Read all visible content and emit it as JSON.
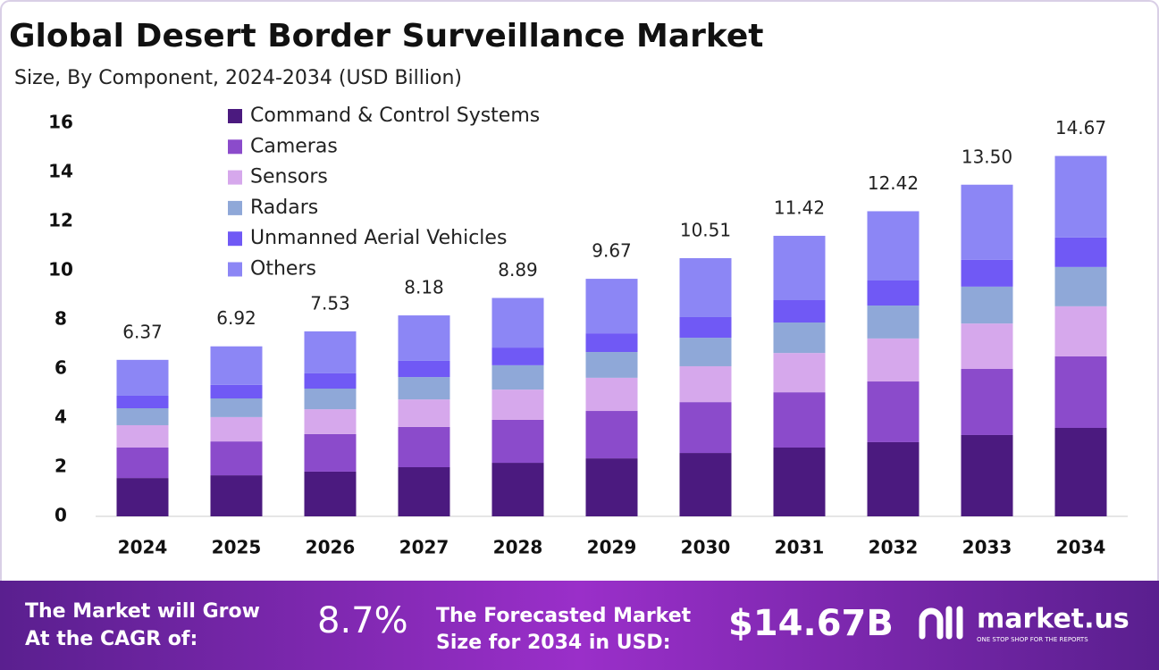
{
  "chart_data": {
    "type": "stacked_bar",
    "title": "Global Desert Border Surveillance Market",
    "subtitle": "Size, By Component, 2024-2034 (USD Billion)",
    "categories": [
      "2024",
      "2025",
      "2026",
      "2027",
      "2028",
      "2029",
      "2030",
      "2031",
      "2032",
      "2033",
      "2034"
    ],
    "series": [
      {
        "name": "Command & Control Systems",
        "color": "#4b1a7f",
        "values": [
          1.56,
          1.67,
          1.82,
          2.0,
          2.18,
          2.36,
          2.58,
          2.8,
          3.02,
          3.31,
          3.6
        ]
      },
      {
        "name": "Cameras",
        "color": "#8b4bcb",
        "values": [
          1.24,
          1.38,
          1.53,
          1.64,
          1.75,
          1.93,
          2.07,
          2.25,
          2.47,
          2.69,
          2.91
        ]
      },
      {
        "name": "Sensors",
        "color": "#d6a8ec",
        "values": [
          0.91,
          0.99,
          1.01,
          1.12,
          1.23,
          1.35,
          1.46,
          1.6,
          1.75,
          1.85,
          2.04
        ]
      },
      {
        "name": "Radars",
        "color": "#8fa8d8",
        "values": [
          0.69,
          0.76,
          0.84,
          0.91,
          0.99,
          1.05,
          1.16,
          1.24,
          1.34,
          1.5,
          1.6
        ]
      },
      {
        "name": "Unmanned Aerial Vehicles",
        "color": "#7059f5",
        "values": [
          0.51,
          0.55,
          0.62,
          0.66,
          0.72,
          0.76,
          0.84,
          0.91,
          1.02,
          1.09,
          1.2
        ]
      },
      {
        "name": "Others",
        "color": "#8c86f5",
        "values": [
          1.46,
          1.57,
          1.71,
          1.85,
          2.02,
          2.22,
          2.4,
          2.62,
          2.82,
          3.06,
          3.32
        ]
      }
    ],
    "totals": [
      6.37,
      6.92,
      7.53,
      8.18,
      8.89,
      9.67,
      10.51,
      11.42,
      12.42,
      13.5,
      14.67
    ],
    "total_labels": [
      "6.37",
      "6.92",
      "7.53",
      "8.18",
      "8.89",
      "9.67",
      "10.51",
      "11.42",
      "12.42",
      "13.50",
      "14.67"
    ],
    "ylim": [
      0,
      16
    ],
    "yticks": [
      0,
      2,
      4,
      6,
      8,
      10,
      12,
      14,
      16
    ],
    "grid": false
  },
  "footer": {
    "cagr_label": [
      "The Market will Grow",
      "At the CAGR of:"
    ],
    "cagr": "8.7%",
    "forecast_label": [
      "The Forecasted Market",
      "Size for 2034 in USD:"
    ],
    "forecast": "$14.67B",
    "brand": "market.us",
    "tagline": "ONE STOP SHOP FOR THE REPORTS"
  }
}
